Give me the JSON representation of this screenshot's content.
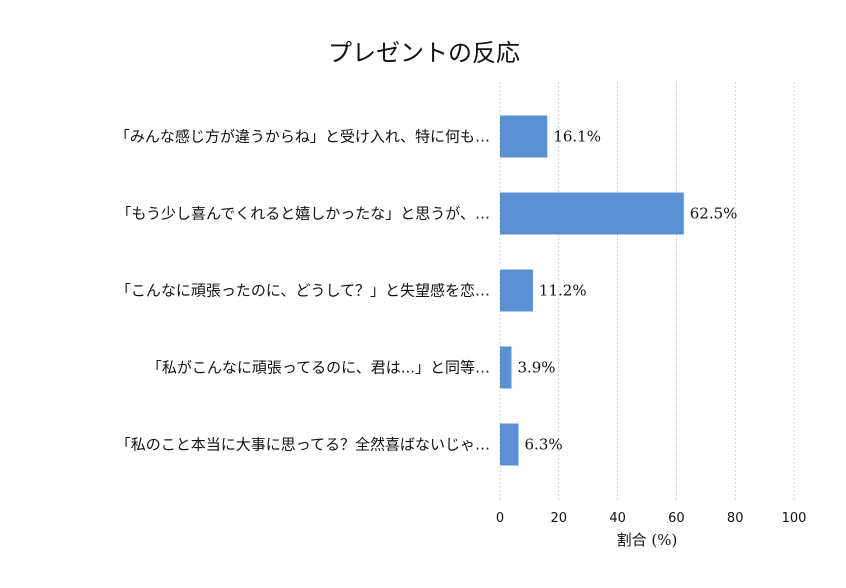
{
  "chart_data": {
    "type": "bar",
    "orientation": "horizontal",
    "title": "プレゼントの反応",
    "categories": [
      "「みんな感じ方が違うからね」と受け入れ、特に何も…",
      "「もう少し喜んでくれると嬉しかったな」と思うが、…",
      "「こんなに頑張ったのに、どうして？」と失望感を恋…",
      "「私がこんなに頑張ってるのに、君は...」と同等…",
      "「私のこと本当に大事に思ってる？全然喜ばないじゃ…"
    ],
    "values": [
      16.1,
      62.5,
      11.2,
      3.9,
      6.3
    ],
    "value_labels": [
      "16.1%",
      "62.5%",
      "11.2%",
      "3.9%",
      "6.3%"
    ],
    "xlabel": "割合 (%)",
    "ylabel": "",
    "xlim": [
      0,
      100
    ],
    "xticks": [
      0,
      20,
      40,
      60,
      80,
      100
    ],
    "grid": "vertical dashed",
    "bar_color": "#5b8fd1"
  }
}
